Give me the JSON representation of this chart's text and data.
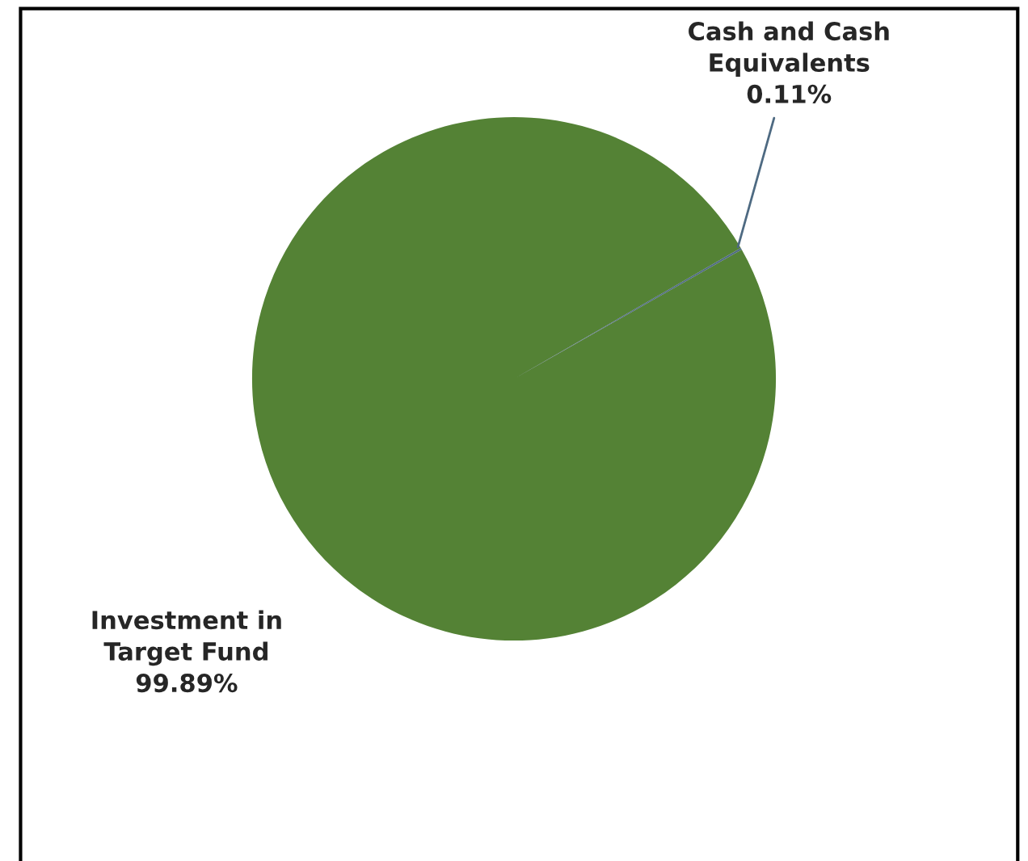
{
  "chart_data": {
    "type": "pie",
    "categories": [
      "Investment in\nTarget Fund",
      "Cash and Cash\nEquivalents"
    ],
    "values": [
      99.89,
      0.11
    ],
    "colors": [
      "#548235",
      "#4e6a82"
    ],
    "value_labels": [
      "99.89%",
      "0.11%"
    ]
  }
}
